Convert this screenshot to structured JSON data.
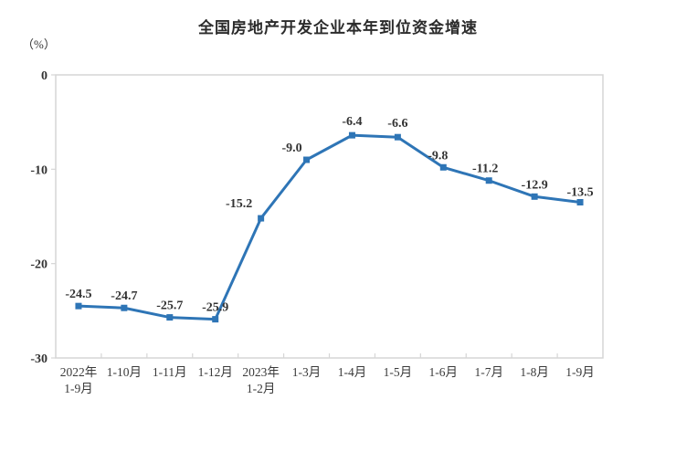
{
  "page": {
    "background": "#ffffff"
  },
  "chart_data": {
    "type": "line",
    "title": "全国房地产开发企业本年到位资金增速",
    "unit_label": "（%）",
    "categories": [
      [
        "2022年",
        "1-9月"
      ],
      [
        "1-10月"
      ],
      [
        "1-11月"
      ],
      [
        "1-12月"
      ],
      [
        "2023年",
        "1-2月"
      ],
      [
        "1-3月"
      ],
      [
        "1-4月"
      ],
      [
        "1-5月"
      ],
      [
        "1-6月"
      ],
      [
        "1-7月"
      ],
      [
        "1-8月"
      ],
      [
        "1-9月"
      ]
    ],
    "values": [
      -24.5,
      -24.7,
      -25.7,
      -25.9,
      -15.2,
      -9.0,
      -6.4,
      -6.6,
      -9.8,
      -11.2,
      -12.9,
      -13.5
    ],
    "value_labels": [
      "-24.5",
      "-24.7",
      "-25.7",
      "-25.9",
      "-15.2",
      "-9.0",
      "-6.4",
      "-6.6",
      "-9.8",
      "-11.2",
      "-12.9",
      "-13.5"
    ],
    "xlabel": "",
    "ylabel": "（%）",
    "ylim": [
      -30,
      0
    ],
    "yticks": [
      0,
      -10,
      -20,
      -30
    ],
    "grid": false,
    "legend": "none",
    "marker": "square",
    "line_color": "#2E75B6",
    "text_color": "#333333",
    "axis_color": "#D6D6D6"
  }
}
